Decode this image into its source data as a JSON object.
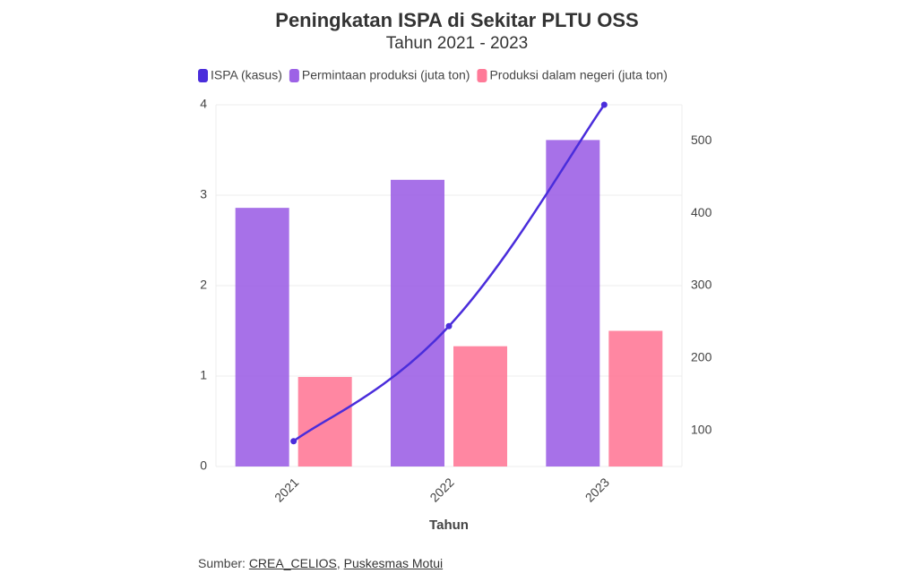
{
  "chart_data": {
    "type": "bar",
    "title": "Peningkatan ISPA di Sekitar PLTU OSS",
    "subtitle": "Tahun 2021 - 2023",
    "x_label": "Tahun",
    "categories": [
      "2021",
      "2022",
      "2023"
    ],
    "series": [
      {
        "name": "ISPA (kasus)",
        "type": "line",
        "axis": "y2",
        "color": "#4a2ddb",
        "values": [
          85,
          244,
          550
        ]
      },
      {
        "name": "Permintaan produksi (juta ton)",
        "type": "bar",
        "color": "#9d62e6",
        "values": [
          2.86,
          3.17,
          3.61
        ]
      },
      {
        "name": "Produksi dalam negeri (juta ton)",
        "type": "bar",
        "color": "#ff7a98",
        "values": [
          0.99,
          1.33,
          1.5
        ]
      }
    ],
    "ylim": [
      0,
      4
    ],
    "yticks": [
      0,
      1,
      2,
      3,
      4
    ],
    "y2lim": [
      50,
      550
    ],
    "y2ticks": [
      100,
      200,
      300,
      400,
      500
    ],
    "grid": true,
    "legend": "top"
  },
  "source": {
    "label": "Sumber:",
    "links": [
      "CREA_CELIOS",
      "Puskesmas Motui"
    ],
    "separator": ","
  }
}
